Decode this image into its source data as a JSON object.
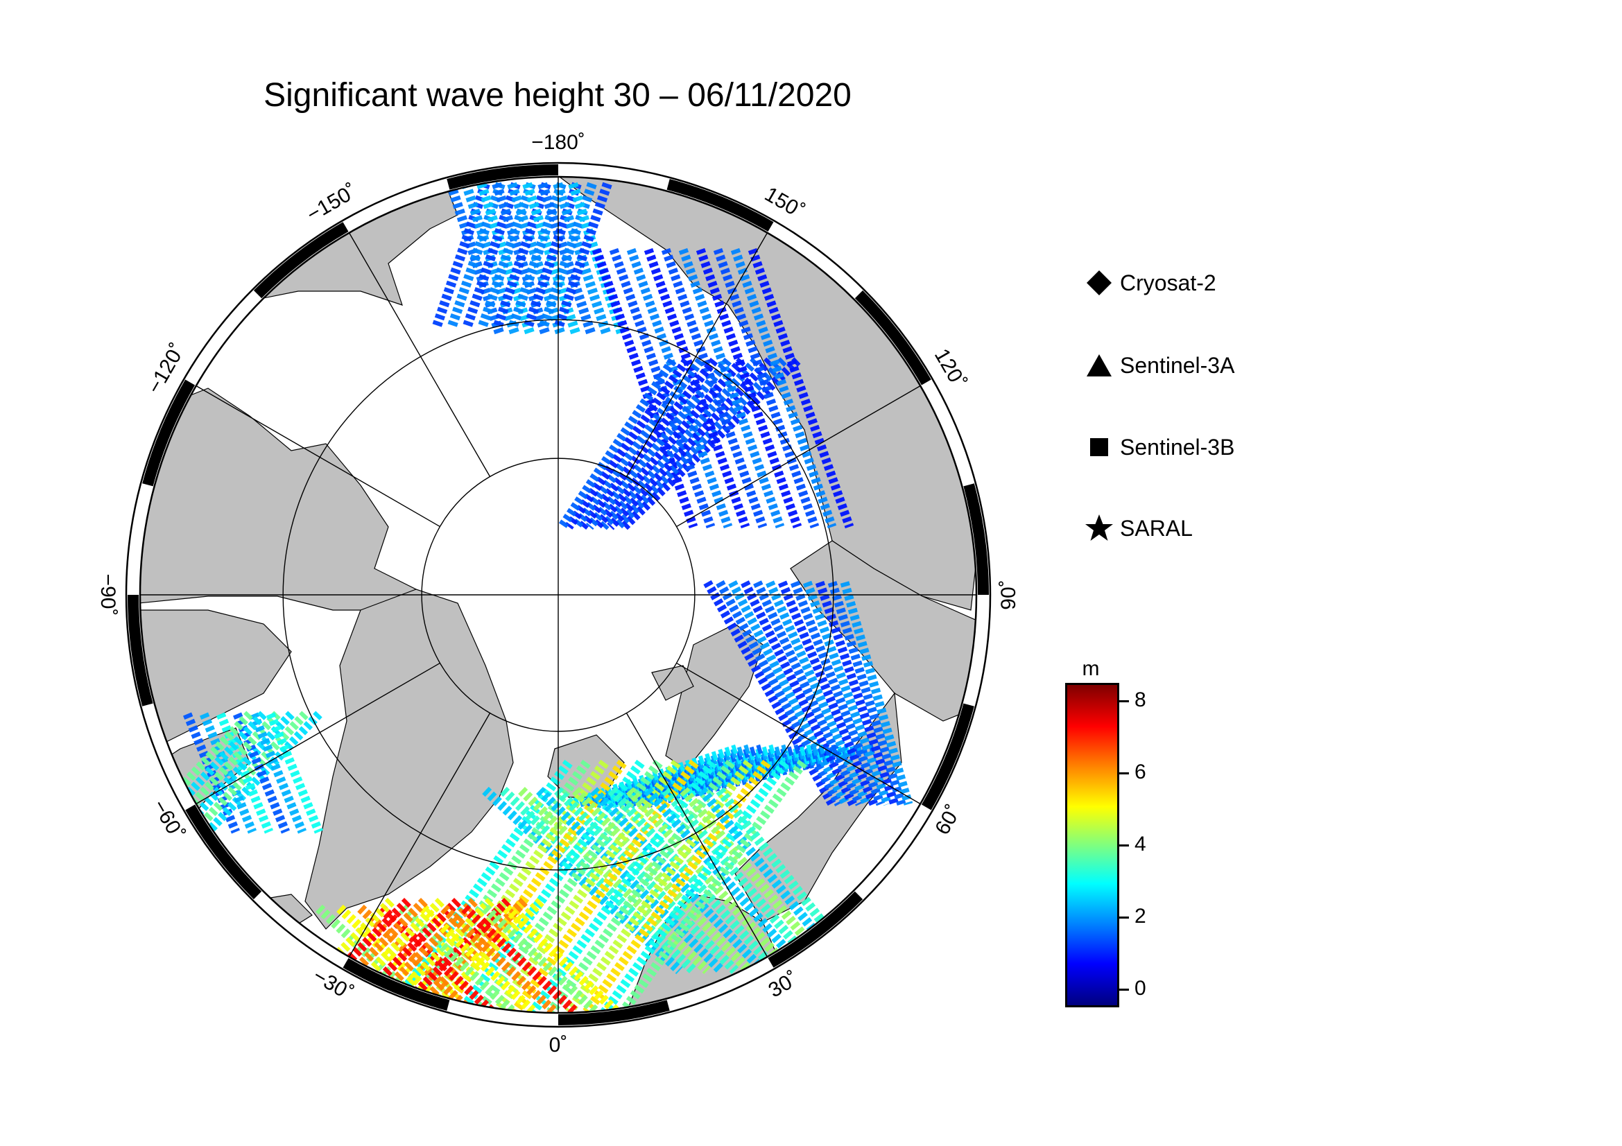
{
  "title": "Significant wave height 30 – 06/11/2020",
  "map": {
    "projection": "north-polar-stereographic",
    "land_color": "#c0c0c0",
    "ocean_color": "#ffffff",
    "longitude_labels": [
      {
        "lon": 180,
        "text": "−180˚"
      },
      {
        "lon": 150,
        "text": "150˚"
      },
      {
        "lon": 120,
        "text": "120˚"
      },
      {
        "lon": 90,
        "text": "90˚"
      },
      {
        "lon": 60,
        "text": "60˚"
      },
      {
        "lon": 30,
        "text": "30˚"
      },
      {
        "lon": 0,
        "text": "0˚"
      },
      {
        "lon": -30,
        "text": "−30˚"
      },
      {
        "lon": -60,
        "text": "−60˚"
      },
      {
        "lon": -90,
        "text": "−90˚"
      },
      {
        "lon": -120,
        "text": "−120˚"
      },
      {
        "lon": -150,
        "text": "−150˚"
      }
    ],
    "meridian_step_deg": 30,
    "latitude_circles_deg": [
      70,
      80
    ]
  },
  "legend": {
    "items": [
      {
        "label": "Cryosat-2",
        "symbol": "diamond-icon"
      },
      {
        "label": "Sentinel-3A",
        "symbol": "triangle-icon"
      },
      {
        "label": "Sentinel-3B",
        "symbol": "square-icon"
      },
      {
        "label": "SARAL",
        "symbol": "star-icon"
      }
    ]
  },
  "colorbar": {
    "unit": "m",
    "min": -0.5,
    "max": 8.5,
    "ticks": [
      "0",
      "2",
      "4",
      "6",
      "8"
    ],
    "colormap": "jet"
  }
}
